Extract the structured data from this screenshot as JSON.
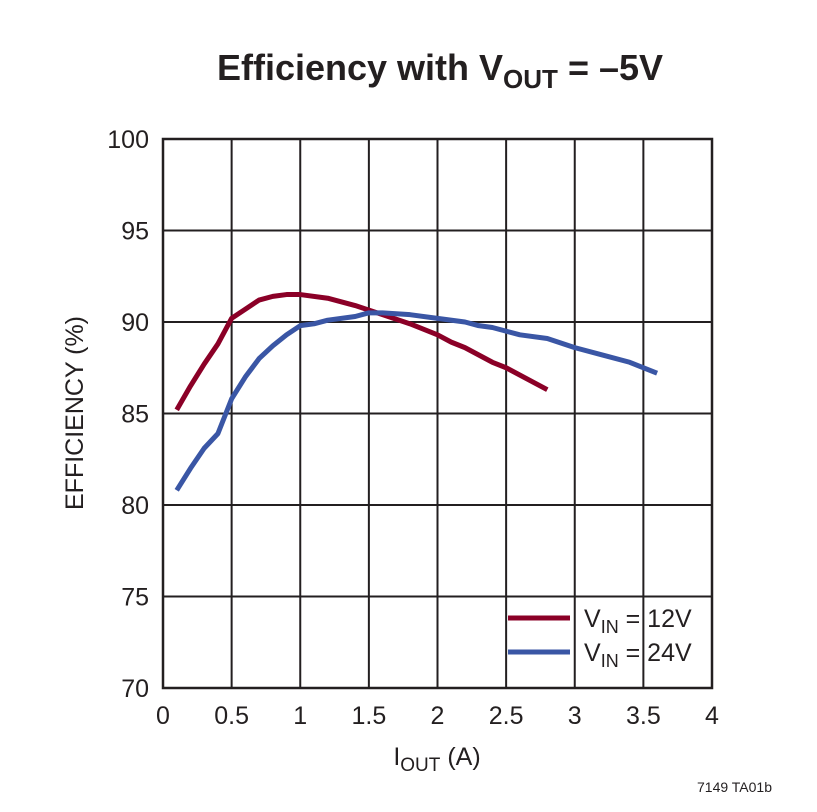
{
  "chart_data": {
    "type": "line",
    "title": {
      "main": "Efficiency with V",
      "sub": "OUT",
      "rest": " = –5V"
    },
    "xlabel": {
      "main": "I",
      "sub": "OUT",
      "rest": " (A)"
    },
    "ylabel": "EFFICIENCY (%)",
    "xlim": [
      0,
      4
    ],
    "ylim": [
      70,
      100
    ],
    "xticks": [
      "0",
      "0.5",
      "1",
      "1.5",
      "2",
      "2.5",
      "3",
      "3.5",
      "4"
    ],
    "yticks": [
      "70",
      "75",
      "80",
      "85",
      "90",
      "95",
      "100"
    ],
    "grid": true,
    "legend_position": "bottom-right",
    "footnote": "7149 TA01b",
    "series": [
      {
        "name": {
          "main": "V",
          "sub": "IN",
          "rest": " = 12V"
        },
        "color": "#8b0027",
        "x": [
          0.1,
          0.2,
          0.3,
          0.4,
          0.5,
          0.6,
          0.7,
          0.8,
          0.9,
          1.0,
          1.2,
          1.4,
          1.6,
          1.8,
          2.0,
          2.1,
          2.2,
          2.4,
          2.5,
          2.8
        ],
        "y": [
          85.2,
          86.5,
          87.7,
          88.8,
          90.2,
          90.7,
          91.2,
          91.4,
          91.5,
          91.5,
          91.3,
          90.9,
          90.4,
          89.9,
          89.3,
          88.9,
          88.6,
          87.8,
          87.5,
          86.3
        ]
      },
      {
        "name": {
          "main": "V",
          "sub": "IN",
          "rest": " = 24V"
        },
        "color": "#3a56a5",
        "x": [
          0.1,
          0.2,
          0.3,
          0.4,
          0.5,
          0.6,
          0.7,
          0.8,
          0.9,
          1.0,
          1.1,
          1.2,
          1.4,
          1.5,
          1.6,
          1.8,
          2.0,
          2.2,
          2.3,
          2.4,
          2.6,
          2.8,
          3.0,
          3.2,
          3.4,
          3.6
        ],
        "y": [
          80.8,
          82.0,
          83.1,
          83.9,
          85.8,
          87.0,
          88.0,
          88.7,
          89.3,
          89.8,
          89.9,
          90.1,
          90.3,
          90.5,
          90.5,
          90.4,
          90.2,
          90.0,
          89.8,
          89.7,
          89.3,
          89.1,
          88.6,
          88.2,
          87.8,
          87.2
        ]
      }
    ]
  }
}
